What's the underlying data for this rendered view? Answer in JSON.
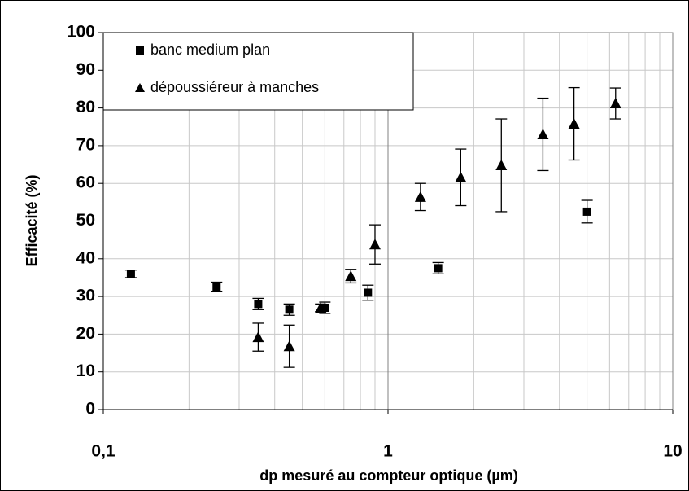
{
  "chart_data": {
    "type": "scatter",
    "x_label": "dp mesuré au compteur optique (µm)",
    "y_label": "Efficacité (%)",
    "xscale": "log",
    "xlim": [
      0.1,
      10
    ],
    "xticks": [
      {
        "value": 0.1,
        "label": "0,1"
      },
      1,
      10
    ],
    "ylim": [
      0,
      100
    ],
    "yticks": [
      0,
      10,
      20,
      30,
      40,
      50,
      60,
      70,
      80,
      90,
      100
    ],
    "grid": true,
    "legend": "upper left",
    "series": [
      {
        "name": "banc medium plan",
        "color": "#000000",
        "marker": "square",
        "x": [
          0.125,
          0.25,
          0.35,
          0.45,
          0.6,
          0.85,
          1.5,
          5
        ],
        "values": [
          36,
          32.6,
          28,
          26.5,
          27,
          31,
          37.5,
          52.5
        ],
        "errors": [
          1,
          1.2,
          1.5,
          1.5,
          1.5,
          2,
          1.5,
          3
        ]
      },
      {
        "name": "dépoussiéreur à manches",
        "color": "#000000",
        "marker": "triangle",
        "x": [
          0.35,
          0.45,
          0.58,
          0.74,
          0.9,
          1.3,
          1.8,
          2.5,
          3.5,
          4.5,
          6.3
        ],
        "values": [
          19.2,
          16.8,
          27,
          35.4,
          43.8,
          56.4,
          61.6,
          64.8,
          73,
          75.8,
          81.2
        ],
        "errors": [
          3.7,
          5.6,
          1,
          1.8,
          5.2,
          3.6,
          7.5,
          12.3,
          9.6,
          9.6,
          4.1
        ]
      }
    ]
  }
}
